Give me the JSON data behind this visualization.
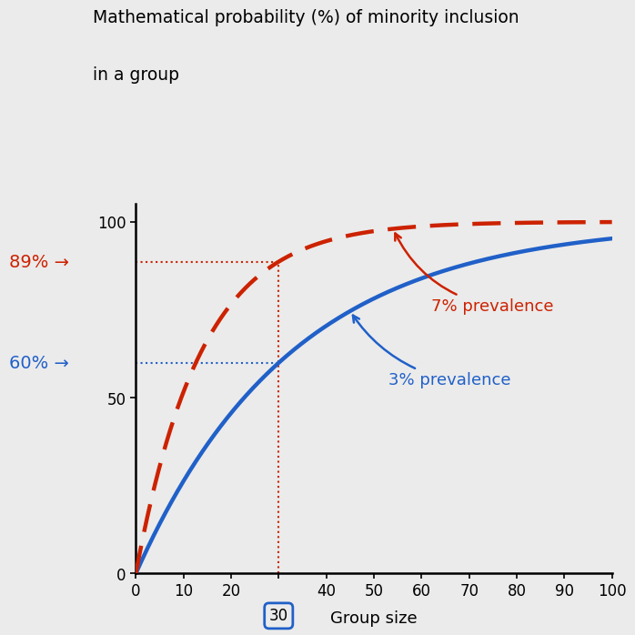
{
  "title_line1": "Mathematical probability (%) of minority inclusion",
  "title_line2": "in a group",
  "xlabel": "Group size",
  "xlim": [
    0,
    100
  ],
  "ylim": [
    0,
    105
  ],
  "xticks": [
    0,
    10,
    20,
    30,
    40,
    50,
    60,
    70,
    80,
    90,
    100
  ],
  "yticks": [
    0,
    50,
    100
  ],
  "prevalence_3": 0.03,
  "prevalence_7": 0.07,
  "ref_x": 30,
  "blue_color": "#2060c8",
  "red_color": "#cc2200",
  "blue_label": "3% prevalence",
  "red_label": "7% prevalence",
  "annotation_60": "60%",
  "annotation_89": "89%",
  "bg_color": "#ebebeb",
  "title_fontsize": 13.5,
  "label_fontsize": 13,
  "tick_fontsize": 12,
  "annotation_fontsize": 14
}
